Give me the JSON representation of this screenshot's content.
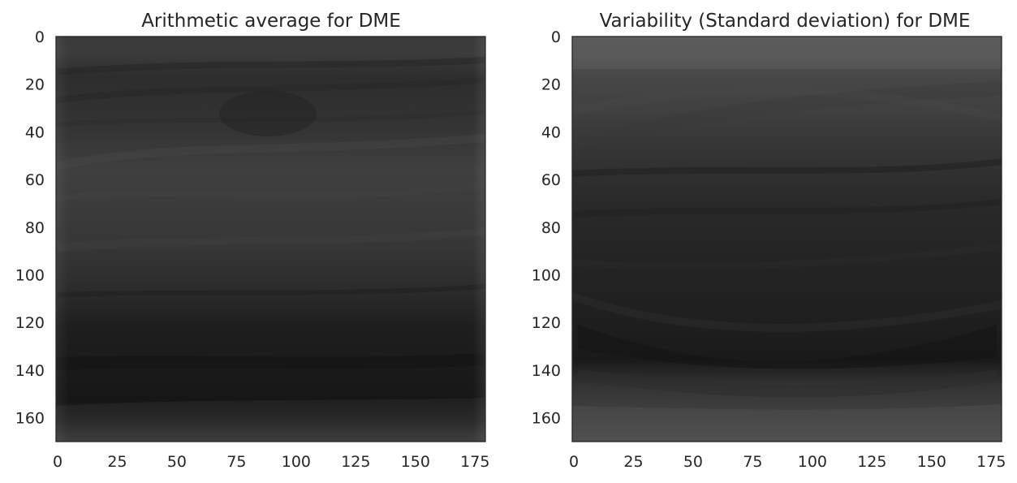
{
  "chart_data": [
    {
      "type": "heatmap",
      "title": "Arithmetic average for DME",
      "xlabel": "",
      "ylabel": "",
      "x_range": [
        0,
        180
      ],
      "y_range": [
        0,
        170
      ],
      "y_inverted": true,
      "x_ticks": [
        "0",
        "25",
        "50",
        "75",
        "100",
        "125",
        "150",
        "175"
      ],
      "y_ticks": [
        "0",
        "20",
        "40",
        "60",
        "80",
        "100",
        "120",
        "140",
        "160"
      ],
      "grid": false,
      "colormap": "gray"
    },
    {
      "type": "heatmap",
      "title": "Variability (Standard deviation) for DME",
      "xlabel": "",
      "ylabel": "",
      "x_range": [
        0,
        180
      ],
      "y_range": [
        0,
        170
      ],
      "y_inverted": true,
      "x_ticks": [
        "0",
        "25",
        "50",
        "75",
        "100",
        "125",
        "150",
        "175"
      ],
      "y_ticks": [
        "0",
        "20",
        "40",
        "60",
        "80",
        "100",
        "120",
        "140",
        "160"
      ],
      "grid": false,
      "colormap": "gray"
    }
  ]
}
